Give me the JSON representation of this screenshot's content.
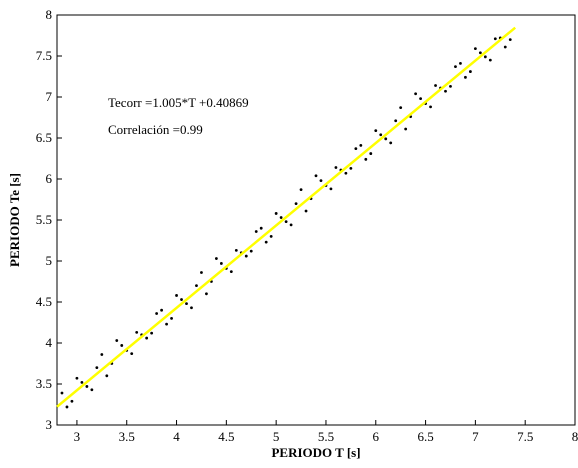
{
  "chart_data": {
    "type": "scatter",
    "xlabel": "PERIODO T [s]",
    "ylabel": "PERIODO Te [s]",
    "annotations": [
      "Tecorr =1.005*T +0.40869",
      "Correlación =0.99"
    ],
    "xlim": [
      2.8,
      8
    ],
    "ylim": [
      3,
      8
    ],
    "xticks": [
      3,
      3.5,
      4,
      4.5,
      5,
      5.5,
      6,
      6.5,
      7,
      7.5,
      8
    ],
    "yticks": [
      3,
      3.5,
      4,
      4.5,
      5,
      5.5,
      6,
      6.5,
      7,
      7.5,
      8
    ],
    "points": {
      "color": "#000000",
      "x": [
        2.85,
        2.95,
        3.05,
        3.15,
        3.25,
        3.35,
        3.45,
        3.55,
        3.65,
        3.75,
        3.85,
        3.95,
        4.05,
        4.15,
        4.25,
        4.35,
        4.45,
        4.55,
        4.65,
        4.75,
        4.85,
        4.95,
        5.05,
        5.15,
        5.25,
        5.35,
        5.45,
        5.55,
        5.65,
        5.75,
        5.85,
        5.95,
        6.05,
        6.15,
        6.25,
        6.35,
        6.45,
        6.55,
        6.65,
        6.75,
        6.85,
        6.95,
        7.05,
        7.15,
        7.25,
        7.35,
        2.9,
        3.0,
        3.1,
        3.2,
        3.3,
        3.4,
        3.5,
        3.6,
        3.7,
        3.8,
        3.9,
        4.0,
        4.1,
        4.2,
        4.3,
        4.4,
        4.5,
        4.6,
        4.7,
        4.8,
        4.9,
        5.0,
        5.1,
        5.2,
        5.3,
        5.4,
        5.5,
        5.6,
        5.7,
        5.8,
        5.9,
        6.0,
        6.1,
        6.2,
        6.3,
        6.4,
        6.5,
        6.6,
        6.7,
        6.8,
        6.9,
        7.0,
        7.1,
        7.2,
        7.3
      ],
      "y": [
        3.39,
        3.29,
        3.52,
        3.43,
        3.86,
        3.75,
        3.97,
        3.87,
        4.1,
        4.12,
        4.4,
        4.3,
        4.53,
        4.43,
        4.86,
        4.75,
        4.97,
        4.87,
        5.1,
        5.12,
        5.4,
        5.3,
        5.53,
        5.44,
        5.87,
        5.76,
        5.98,
        5.88,
        6.11,
        6.13,
        6.41,
        6.31,
        6.54,
        6.44,
        6.87,
        6.76,
        6.98,
        6.88,
        7.11,
        7.13,
        7.41,
        7.31,
        7.54,
        7.45,
        7.72,
        7.7,
        3.22,
        3.57,
        3.47,
        3.7,
        3.6,
        4.03,
        3.91,
        4.13,
        4.06,
        4.36,
        4.23,
        4.58,
        4.48,
        4.7,
        4.6,
        5.03,
        4.91,
        5.13,
        5.06,
        5.36,
        5.23,
        5.58,
        5.48,
        5.7,
        5.61,
        6.04,
        5.92,
        6.14,
        6.07,
        6.37,
        6.24,
        6.59,
        6.49,
        6.71,
        6.61,
        7.04,
        6.92,
        7.14,
        7.07,
        7.37,
        7.24,
        7.59,
        7.49,
        7.71,
        7.61
      ]
    },
    "fit": {
      "color": "#ffff00",
      "x": [
        2.8,
        7.4
      ],
      "y": [
        3.2227,
        7.8457
      ]
    }
  }
}
